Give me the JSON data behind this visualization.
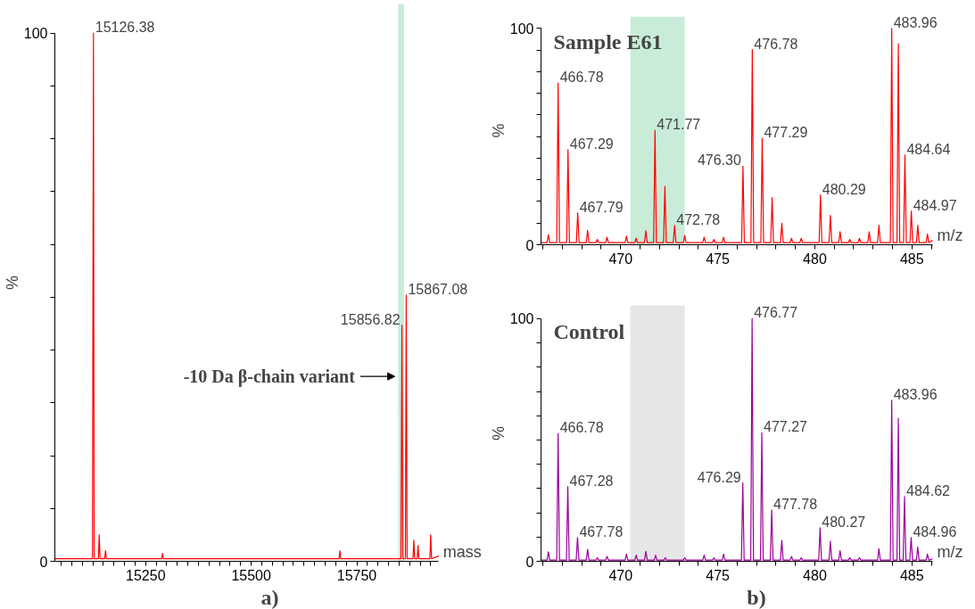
{
  "chart_data": [
    {
      "type": "line",
      "xlabel": "mass",
      "ylabel": "%",
      "xlim": [
        15035,
        15944
      ],
      "ylim": [
        0,
        100
      ],
      "xticks": [
        {
          "value": 15050,
          "label": null
        },
        {
          "value": 15075,
          "label": null
        },
        {
          "value": 15100,
          "label": null
        },
        {
          "value": 15125,
          "label": null
        },
        {
          "value": 15150,
          "label": null
        },
        {
          "value": 15175,
          "label": null
        },
        {
          "value": 15200,
          "label": null
        },
        {
          "value": 15225,
          "label": null
        },
        15250,
        {
          "value": 15275,
          "label": null
        },
        {
          "value": 15300,
          "label": null
        },
        {
          "value": 15325,
          "label": null
        },
        {
          "value": 15350,
          "label": null
        },
        {
          "value": 15375,
          "label": null
        },
        {
          "value": 15400,
          "label": null
        },
        {
          "value": 15425,
          "label": null
        },
        {
          "value": 15450,
          "label": null
        },
        {
          "value": 15475,
          "label": null
        },
        15500,
        {
          "value": 15525,
          "label": null
        },
        {
          "value": 15550,
          "label": null
        },
        {
          "value": 15575,
          "label": null
        },
        {
          "value": 15600,
          "label": null
        },
        {
          "value": 15625,
          "label": null
        },
        {
          "value": 15650,
          "label": null
        },
        {
          "value": 15675,
          "label": null
        },
        {
          "value": 15700,
          "label": null
        },
        {
          "value": 15725,
          "label": null
        },
        15750,
        {
          "value": 15775,
          "label": null
        },
        {
          "value": 15800,
          "label": null
        },
        {
          "value": 15825,
          "label": null
        },
        {
          "value": 15850,
          "label": null
        },
        {
          "value": 15875,
          "label": null
        },
        {
          "value": 15900,
          "label": null
        },
        {
          "value": 15925,
          "label": null
        }
      ],
      "yticks": [
        0,
        {
          "value": 10,
          "label": null
        },
        {
          "value": 20,
          "label": null
        },
        {
          "value": 30,
          "label": null
        },
        {
          "value": 40,
          "label": null
        },
        {
          "value": 50,
          "label": null
        },
        {
          "value": 60,
          "label": null
        },
        {
          "value": 70,
          "label": null
        },
        {
          "value": 80,
          "label": null
        },
        {
          "value": 90,
          "label": null
        },
        100
      ],
      "grid": false,
      "marker": "none",
      "line_style": "solid",
      "series": [
        {
          "color": "#ff0000",
          "x": [
            15035,
            15100,
            15124,
            15126.38,
            15128,
            15138,
            15140,
            15142,
            15153,
            15155,
            15157,
            15288,
            15290,
            15292,
            15500,
            15708,
            15710,
            15712,
            15850,
            15854.5,
            15856.82,
            15859,
            15865,
            15867.08,
            15869,
            15883,
            15885,
            15887,
            15893,
            15895,
            15897,
            15923,
            15925,
            15927,
            15944
          ],
          "values": [
            0.5,
            0.5,
            0.5,
            100,
            0.5,
            0.5,
            5,
            0.5,
            0.5,
            2,
            0.5,
            0.5,
            1.5,
            0.5,
            0.5,
            0.5,
            2,
            0.5,
            0.5,
            0.5,
            44.7,
            0.5,
            0.5,
            50.4,
            0.5,
            0.5,
            4,
            0.5,
            0.5,
            3,
            0.5,
            0.5,
            5,
            0.5,
            1
          ]
        }
      ],
      "bands": [
        {
          "axis": "x",
          "from": 15848,
          "to": 15862,
          "color": "#c8ecd8"
        }
      ],
      "annotations": [
        {
          "text": "15126.38",
          "x": 15126.38,
          "y": 100
        },
        {
          "text": "15867.08",
          "x": 15867.08,
          "y": 50.4
        },
        {
          "text": "15856.82",
          "x": 15856.82,
          "y": 44.7
        },
        {
          "text": "-10 Da β-chain variant",
          "x": 15840,
          "y": 35
        },
        "a)"
      ]
    },
    {
      "type": "line",
      "title": "Sample E61",
      "xlabel": "m/z",
      "ylabel": "%",
      "xlim": [
        465.9,
        486.07
      ],
      "ylim": [
        0,
        100
      ],
      "xticks": [
        {
          "value": 466,
          "label": null
        },
        {
          "value": 467,
          "label": null
        },
        {
          "value": 468,
          "label": null
        },
        {
          "value": 469,
          "label": null
        },
        470,
        {
          "value": 471,
          "label": null
        },
        {
          "value": 472,
          "label": null
        },
        {
          "value": 473,
          "label": null
        },
        {
          "value": 474,
          "label": null
        },
        475,
        {
          "value": 476,
          "label": null
        },
        {
          "value": 477,
          "label": null
        },
        {
          "value": 478,
          "label": null
        },
        {
          "value": 479,
          "label": null
        },
        480,
        {
          "value": 481,
          "label": null
        },
        {
          "value": 482,
          "label": null
        },
        {
          "value": 483,
          "label": null
        },
        {
          "value": 484,
          "label": null
        },
        485,
        {
          "value": 486,
          "label": null
        }
      ],
      "yticks": [
        0,
        {
          "value": 10,
          "label": null
        },
        {
          "value": 20,
          "label": null
        },
        {
          "value": 30,
          "label": null
        },
        {
          "value": 40,
          "label": null
        },
        {
          "value": 50,
          "label": null
        },
        {
          "value": 60,
          "label": null
        },
        {
          "value": 70,
          "label": null
        },
        {
          "value": 80,
          "label": null
        },
        {
          "value": 90,
          "label": null
        },
        100
      ],
      "grid": false,
      "marker": "none",
      "line_style": "solid",
      "series": [
        {
          "color": "#ff0000",
          "x": [
            465.9,
            466.21,
            466.28,
            466.35,
            466.71,
            466.78,
            466.85,
            467.22,
            467.29,
            467.36,
            467.72,
            467.79,
            467.86,
            468.23,
            468.3,
            468.37,
            468.73,
            468.8,
            468.87,
            469.23,
            469.3,
            469.37,
            470.23,
            470.3,
            470.37,
            470.73,
            470.8,
            470.87,
            471.23,
            471.3,
            471.37,
            471.7,
            471.77,
            471.84,
            472.21,
            472.28,
            472.35,
            472.71,
            472.78,
            472.85,
            473.23,
            473.3,
            473.37,
            474.23,
            474.3,
            474.37,
            474.73,
            474.8,
            474.87,
            475.23,
            475.3,
            475.37,
            476.23,
            476.3,
            476.37,
            476.71,
            476.78,
            476.85,
            477.22,
            477.29,
            477.36,
            477.73,
            477.8,
            477.87,
            478.23,
            478.3,
            478.37,
            478.73,
            478.8,
            478.87,
            479.23,
            479.3,
            479.37,
            480.22,
            480.29,
            480.36,
            480.73,
            480.8,
            480.87,
            481.23,
            481.3,
            481.37,
            481.73,
            481.8,
            481.87,
            482.23,
            482.3,
            482.37,
            482.73,
            482.8,
            482.87,
            483.23,
            483.3,
            483.37,
            483.89,
            483.96,
            484.03,
            484.23,
            484.3,
            484.37,
            484.57,
            484.64,
            484.71,
            484.9,
            484.97,
            485.04,
            485.23,
            485.3,
            485.37,
            485.73,
            485.8,
            485.87,
            486.07
          ],
          "values": [
            1,
            1,
            4.7,
            1,
            1,
            74.8,
            1,
            1,
            44,
            1,
            1,
            14.7,
            1,
            1,
            6.7,
            1,
            1,
            2.5,
            1,
            1,
            3.5,
            1,
            1,
            4,
            1,
            1,
            3,
            1,
            1,
            6.5,
            1,
            1,
            52.9,
            1,
            1,
            27,
            1,
            1,
            8.9,
            1,
            1,
            4.3,
            1,
            1,
            3.5,
            1,
            1,
            2.5,
            1,
            1,
            3.5,
            1,
            1,
            36.3,
            1,
            1,
            90.2,
            1,
            1,
            49.2,
            1,
            1,
            21.8,
            1,
            1,
            10,
            1,
            1,
            3,
            1,
            1,
            3,
            1,
            1,
            23,
            1,
            1,
            13.6,
            1,
            1,
            6,
            1,
            1,
            2.5,
            1,
            1,
            3,
            1,
            1,
            6,
            1,
            1,
            9,
            1,
            1,
            100,
            1,
            1,
            92.9,
            1,
            1,
            41.5,
            1,
            1,
            15.6,
            1,
            1,
            9,
            1,
            1,
            5,
            1,
            2
          ]
        }
      ],
      "bands": [
        {
          "axis": "x",
          "from": 470.5,
          "to": 473.3,
          "color": "#c8ecd8"
        }
      ],
      "annotations": [
        {
          "text": "466.78",
          "x": 466.78,
          "y": 74.8
        },
        {
          "text": "467.29",
          "x": 467.29,
          "y": 44
        },
        {
          "text": "467.79",
          "x": 467.79,
          "y": 14.7
        },
        {
          "text": "471.77",
          "x": 471.77,
          "y": 52.9
        },
        {
          "text": "472.78",
          "x": 472.78,
          "y": 8.9
        },
        {
          "text": "476.30",
          "x": 476.3,
          "y": 36.3
        },
        {
          "text": "476.78",
          "x": 476.78,
          "y": 90.2
        },
        {
          "text": "477.29",
          "x": 477.29,
          "y": 49.2
        },
        {
          "text": "480.29",
          "x": 480.29,
          "y": 23
        },
        {
          "text": "483.96",
          "x": 483.96,
          "y": 100
        },
        {
          "text": "484.64",
          "x": 484.64,
          "y": 41.5
        },
        {
          "text": "484.97",
          "x": 484.97,
          "y": 15.6
        }
      ]
    },
    {
      "type": "line",
      "title": "Control",
      "xlabel": "m/z",
      "ylabel": "%",
      "xlim": [
        465.9,
        486.07
      ],
      "ylim": [
        0,
        100
      ],
      "xticks": [
        {
          "value": 466,
          "label": null
        },
        {
          "value": 467,
          "label": null
        },
        {
          "value": 468,
          "label": null
        },
        {
          "value": 469,
          "label": null
        },
        470,
        {
          "value": 471,
          "label": null
        },
        {
          "value": 472,
          "label": null
        },
        {
          "value": 473,
          "label": null
        },
        {
          "value": 474,
          "label": null
        },
        475,
        {
          "value": 476,
          "label": null
        },
        {
          "value": 477,
          "label": null
        },
        {
          "value": 478,
          "label": null
        },
        {
          "value": 479,
          "label": null
        },
        480,
        {
          "value": 481,
          "label": null
        },
        {
          "value": 482,
          "label": null
        },
        {
          "value": 483,
          "label": null
        },
        {
          "value": 484,
          "label": null
        },
        485,
        {
          "value": 486,
          "label": null
        }
      ],
      "yticks": [
        0,
        {
          "value": 10,
          "label": null
        },
        {
          "value": 20,
          "label": null
        },
        {
          "value": 30,
          "label": null
        },
        {
          "value": 40,
          "label": null
        },
        {
          "value": 50,
          "label": null
        },
        {
          "value": 60,
          "label": null
        },
        {
          "value": 70,
          "label": null
        },
        {
          "value": 80,
          "label": null
        },
        {
          "value": 90,
          "label": null
        },
        100
      ],
      "grid": false,
      "marker": "none",
      "line_style": "solid",
      "series": [
        {
          "color": "#990099",
          "x": [
            465.9,
            466.21,
            466.28,
            466.35,
            466.71,
            466.78,
            466.85,
            467.21,
            467.28,
            467.35,
            467.71,
            467.78,
            467.85,
            468.23,
            468.3,
            468.37,
            468.73,
            468.8,
            468.87,
            469.23,
            469.3,
            469.37,
            470.23,
            470.3,
            470.37,
            470.73,
            470.8,
            470.87,
            471.23,
            471.3,
            471.37,
            471.73,
            471.8,
            471.87,
            472.23,
            472.3,
            472.37,
            473.23,
            473.3,
            473.37,
            474.23,
            474.3,
            474.37,
            474.73,
            474.8,
            474.87,
            475.23,
            475.3,
            475.37,
            476.22,
            476.29,
            476.36,
            476.7,
            476.77,
            476.84,
            477.2,
            477.27,
            477.34,
            477.71,
            477.78,
            477.85,
            478.23,
            478.3,
            478.37,
            478.73,
            478.8,
            478.87,
            479.23,
            479.3,
            479.37,
            480.2,
            480.27,
            480.34,
            480.73,
            480.8,
            480.87,
            481.23,
            481.3,
            481.37,
            481.73,
            481.8,
            481.87,
            482.23,
            482.3,
            482.37,
            483.23,
            483.3,
            483.37,
            483.89,
            483.96,
            484.03,
            484.23,
            484.3,
            484.37,
            484.55,
            484.62,
            484.69,
            484.89,
            484.96,
            485.03,
            485.23,
            485.3,
            485.37,
            485.73,
            485.8,
            485.87,
            486.07
          ],
          "values": [
            0.5,
            0.5,
            3.9,
            0.5,
            0.5,
            52.7,
            0.5,
            0.5,
            30.8,
            0.5,
            0.5,
            9.8,
            0.5,
            0.5,
            4.9,
            0.5,
            0.5,
            1.5,
            0.5,
            0.5,
            2,
            0.5,
            0.5,
            3,
            0.5,
            0.5,
            2.5,
            0.5,
            0.5,
            4.1,
            0.5,
            0.5,
            2.5,
            0.5,
            0.5,
            1.5,
            0.5,
            0.5,
            1.5,
            0.5,
            0.5,
            2.5,
            0.5,
            0.5,
            1.5,
            0.5,
            0.5,
            3,
            0.5,
            0.5,
            32.3,
            0.5,
            0.5,
            100,
            0.5,
            0.5,
            53,
            0.5,
            0.5,
            21.2,
            0.5,
            0.5,
            8.6,
            0.5,
            0.5,
            2,
            0.5,
            0.5,
            1.5,
            0.5,
            0.5,
            13.8,
            0.5,
            0.5,
            8.3,
            0.5,
            0.5,
            4.4,
            0.5,
            0.5,
            1.5,
            0.5,
            0.5,
            1.5,
            0.5,
            0.5,
            5.2,
            0.5,
            0.5,
            66.4,
            0.5,
            0.5,
            59,
            0.5,
            0.5,
            26.7,
            0.5,
            0.5,
            9.8,
            0.5,
            0.5,
            5.9,
            0.5,
            0.5,
            3,
            0.5,
            1
          ]
        }
      ],
      "bands": [
        {
          "axis": "x",
          "from": 470.5,
          "to": 473.3,
          "color": "#e6e6e6"
        }
      ],
      "annotations": [
        {
          "text": "466.78",
          "x": 466.78,
          "y": 52.7
        },
        {
          "text": "467.28",
          "x": 467.28,
          "y": 30.8
        },
        {
          "text": "467.78",
          "x": 467.78,
          "y": 9.8
        },
        {
          "text": "476.29",
          "x": 476.29,
          "y": 32.3
        },
        {
          "text": "476.77",
          "x": 476.77,
          "y": 100
        },
        {
          "text": "477.27",
          "x": 477.27,
          "y": 53
        },
        {
          "text": "477.78",
          "x": 477.78,
          "y": 21.2
        },
        {
          "text": "480.27",
          "x": 480.27,
          "y": 13.8
        },
        {
          "text": "483.96",
          "x": 483.96,
          "y": 66.4
        },
        {
          "text": "484.62",
          "x": 484.62,
          "y": 26.7
        },
        {
          "text": "484.96",
          "x": 484.96,
          "y": 9.8
        },
        "b)"
      ]
    }
  ]
}
